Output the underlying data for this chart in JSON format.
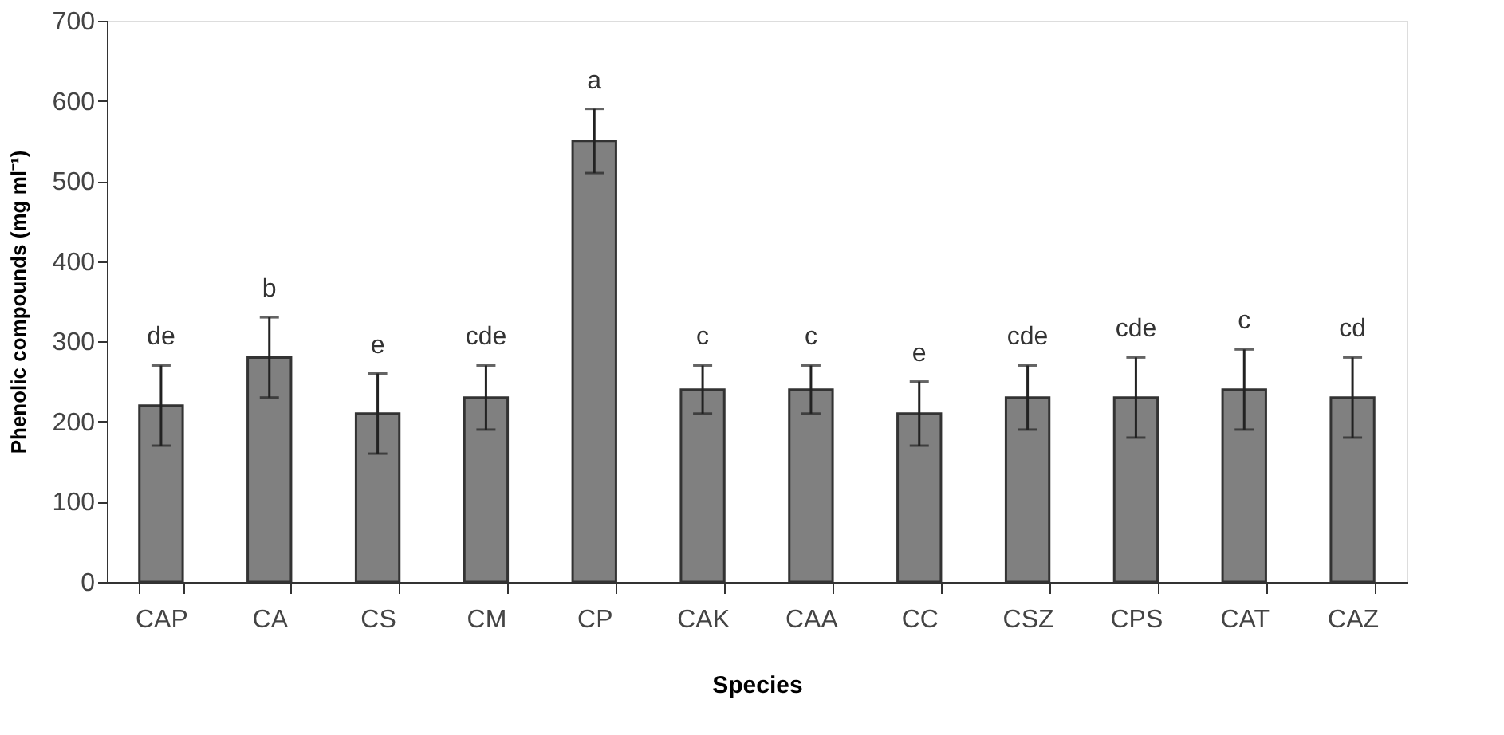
{
  "chart_data": {
    "type": "bar",
    "xlabel": "Species",
    "ylabel": "Phenolic compounds  (mg ml⁻¹)",
    "categories": [
      "CAP",
      "CA",
      "CS",
      "CM",
      "CP",
      "CAK",
      "CAA",
      "CC",
      "CSZ",
      "CPS",
      "CAT",
      "CAZ"
    ],
    "values": [
      220,
      280,
      210,
      230,
      550,
      240,
      240,
      210,
      230,
      230,
      240,
      230
    ],
    "errors": [
      [
        170,
        270
      ],
      [
        230,
        330
      ],
      [
        160,
        260
      ],
      [
        190,
        270
      ],
      [
        510,
        590
      ],
      [
        210,
        270
      ],
      [
        210,
        270
      ],
      [
        170,
        250
      ],
      [
        190,
        270
      ],
      [
        180,
        280
      ],
      [
        190,
        290
      ],
      [
        180,
        280
      ]
    ],
    "color": "#808080",
    "ylim": [
      0,
      700
    ],
    "yticks": [
      0,
      100,
      200,
      300,
      400,
      500,
      600,
      700
    ],
    "grid": false,
    "annotations": [
      {
        "text": "de",
        "x": "CAP",
        "y": 270
      },
      {
        "text": "b",
        "x": "CA",
        "y": 330
      },
      {
        "text": "e",
        "x": "CS",
        "y": 260
      },
      {
        "text": "cde",
        "x": "CM",
        "y": 270
      },
      {
        "text": "a",
        "x": "CP",
        "y": 590
      },
      {
        "text": "c",
        "x": "CAK",
        "y": 270
      },
      {
        "text": "c",
        "x": "CAA",
        "y": 270
      },
      {
        "text": "e",
        "x": "CC",
        "y": 250
      },
      {
        "text": "cde",
        "x": "CSZ",
        "y": 270
      },
      {
        "text": "cde",
        "x": "CPS",
        "y": 280
      },
      {
        "text": "c",
        "x": "CAT",
        "y": 290
      },
      {
        "text": "cd",
        "x": "CAZ",
        "y": 280
      }
    ]
  }
}
